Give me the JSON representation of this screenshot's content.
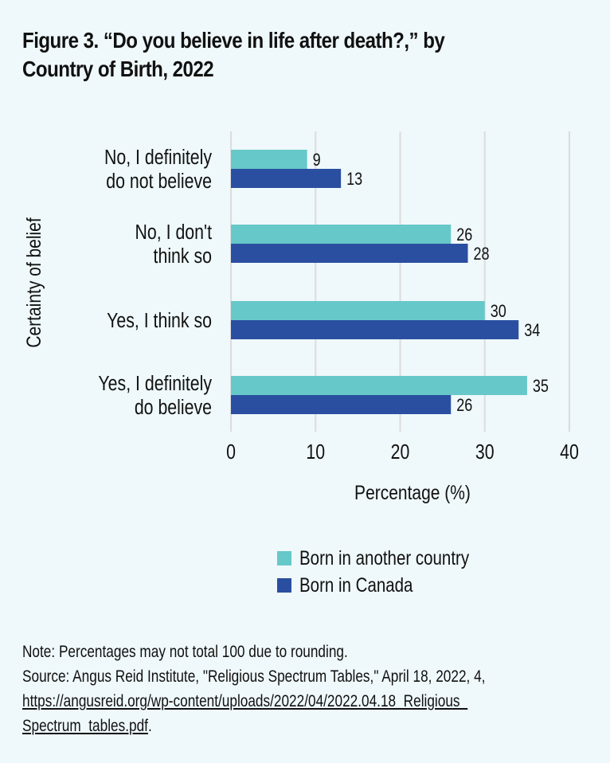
{
  "title_lines": [
    "Figure 3. “Do you believe in life after death?,” by",
    "Country of Birth, 2022"
  ],
  "colors": {
    "background": "#eff8fa",
    "born_another_country": "#66c8c8",
    "born_canada": "#2a4fa0",
    "gridline": "#dcdcdc"
  },
  "chart_data": {
    "type": "bar",
    "orientation": "horizontal",
    "title": "Figure 3. “Do you believe in life after death?,” by Country of Birth, 2022",
    "xlabel": "Percentage (%)",
    "ylabel": "Certainty of belief",
    "xlim": [
      0,
      40
    ],
    "x_ticks": [
      "0",
      "10",
      "20",
      "30",
      "40"
    ],
    "grid": true,
    "legend_position": "bottom",
    "categories": [
      [
        "No, I definitely",
        "do not believe"
      ],
      [
        "No, I don't",
        "think so"
      ],
      [
        "Yes, I think so"
      ],
      [
        "Yes, I definitely",
        "do believe"
      ]
    ],
    "series": [
      {
        "name": "Born in another country",
        "values": [
          9,
          26,
          30,
          35
        ]
      },
      {
        "name": "Born in Canada",
        "values": [
          13,
          28,
          34,
          26
        ]
      }
    ]
  },
  "legend": [
    {
      "label": "Born in another country"
    },
    {
      "label": "Born in Canada"
    }
  ],
  "notes": {
    "note": "Note: Percentages may not total 100 due to rounding.",
    "source": "Source: Angus Reid Institute, \"Religious Spectrum Tables,\" April 18, 2022, 4,",
    "link_line1": "https://angusreid.org/wp-content/uploads/2022/04/2022.04.18_Religious_",
    "link_line2": "Spectrum_tables.pdf",
    "trailing": "."
  }
}
